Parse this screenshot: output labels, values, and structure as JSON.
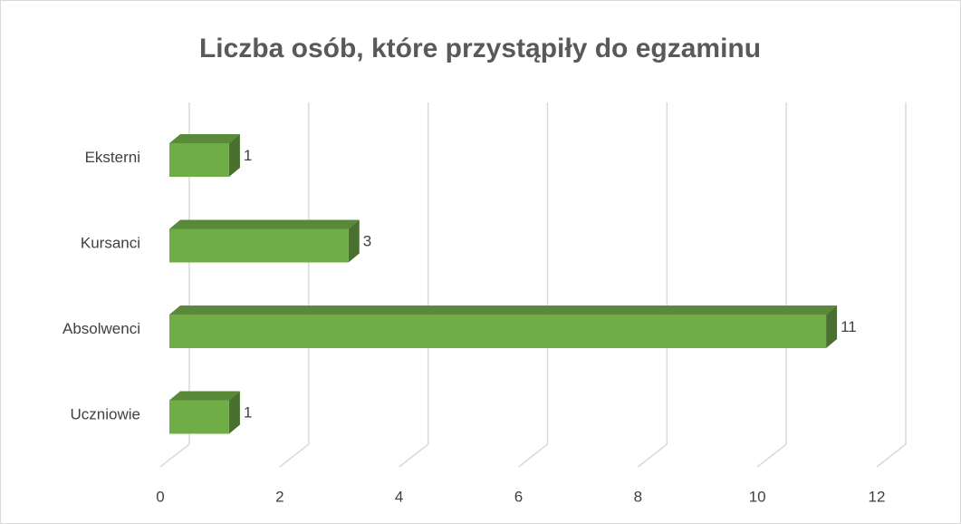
{
  "chart_data": {
    "type": "bar3d",
    "orientation": "horizontal",
    "title": "Liczba osób, które przystąpiły do egzaminu",
    "categories": [
      "Eksterni",
      "Kursanci",
      "Absolwenci",
      "Uczniowie"
    ],
    "values": [
      1,
      3,
      11,
      1
    ],
    "color": "#70ad47",
    "xlim": [
      0,
      12
    ],
    "xticks": [
      0,
      2,
      4,
      6,
      8,
      10,
      12
    ],
    "grid": true
  }
}
